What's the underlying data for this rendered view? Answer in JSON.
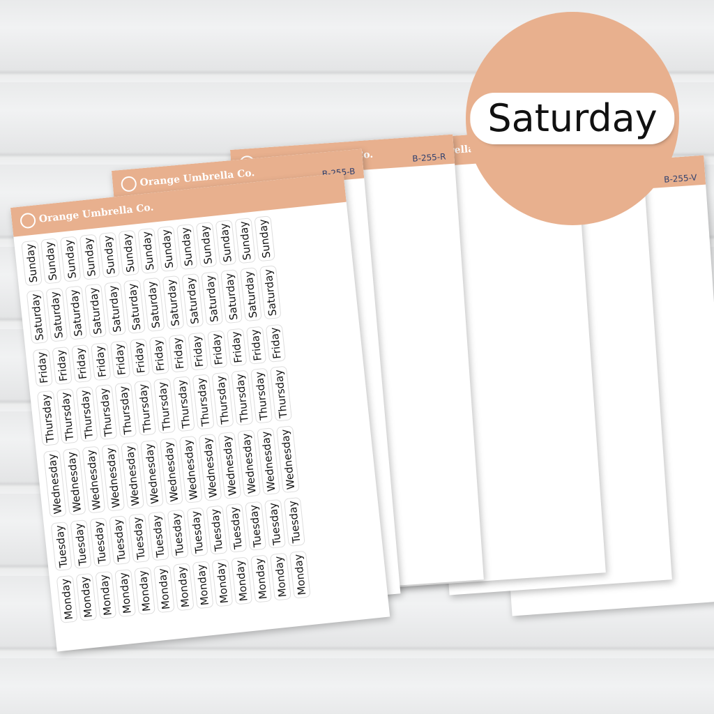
{
  "brand": "Orange Umbrella Co.",
  "days": [
    "Sunday",
    "Saturday",
    "Friday",
    "Thursday",
    "Wednesday",
    "Tuesday",
    "Monday"
  ],
  "circle_label": "Saturday",
  "sheets": [
    {
      "code": "B-255-V",
      "colors": [
        "#3b2a8a",
        "#4a35a0",
        "#3b2a8a",
        "#a8a8a8"
      ]
    },
    {
      "code": "B-25",
      "colors": [
        "#a9c3cf",
        "#8fa8b8",
        "#7a9c8c",
        "#9a9a9a"
      ]
    },
    {
      "code": "B-25",
      "colors": [
        "#e0b8bc",
        "#b34a6a",
        "#7a7f9a",
        "#8a7070"
      ]
    },
    {
      "code": "B-255-R",
      "colors": [
        "#2b3580",
        "#6a2a90",
        "#a03aa8",
        "#d0186a"
      ]
    },
    {
      "code": "B-255-B",
      "colors": [
        "#111",
        "#111",
        "#111",
        "#111",
        "#111",
        "#111",
        "#111",
        "#111"
      ]
    },
    {
      "code": "",
      "colors": [
        "#111",
        "#111",
        "#111",
        "#111",
        "#111",
        "#111",
        "#111",
        "#111",
        "#111",
        "#111",
        "#111",
        "#111",
        "#111"
      ]
    }
  ]
}
